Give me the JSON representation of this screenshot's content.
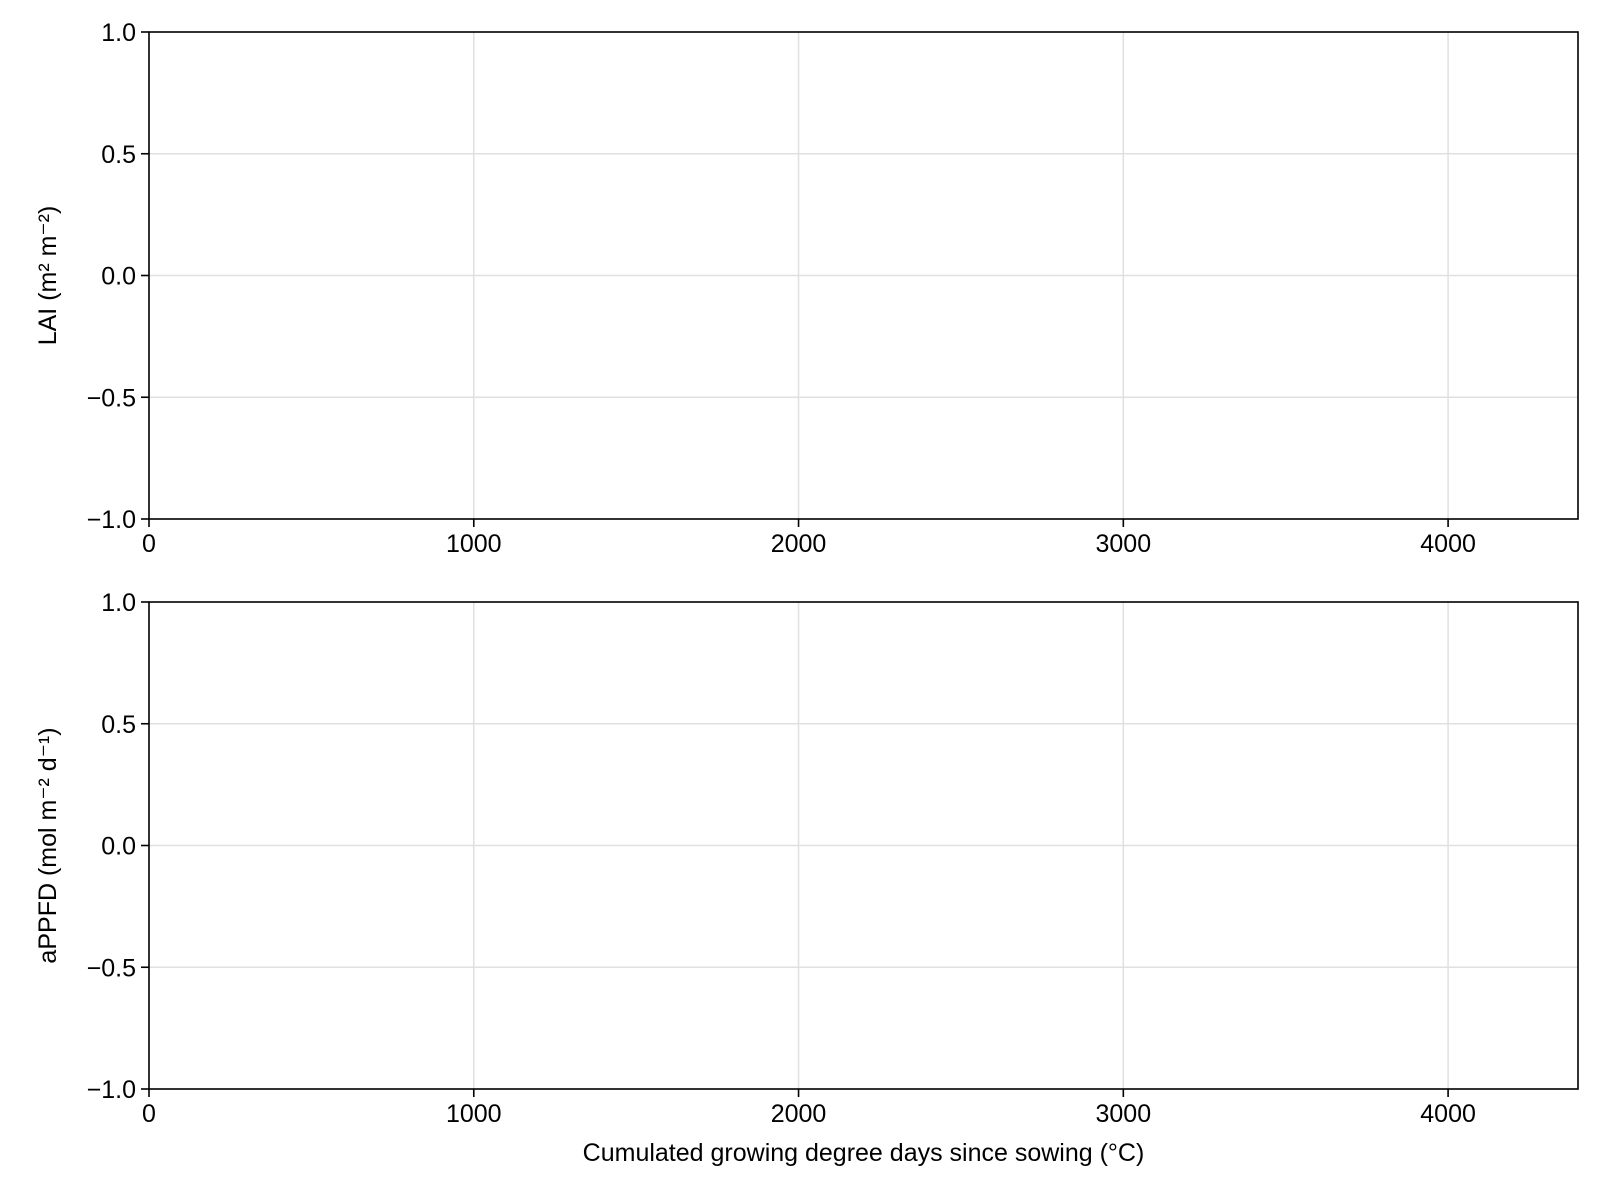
{
  "chart_data": [
    {
      "type": "line",
      "title": "",
      "xlabel": "",
      "ylabel": "LAI (m² m⁻²)",
      "xlim": [
        0,
        4400
      ],
      "ylim": [
        -1.0,
        1.0
      ],
      "x_ticks": [
        0,
        1000,
        2000,
        3000,
        4000
      ],
      "x_tick_labels": [
        "0",
        "1000",
        "2000",
        "3000",
        "4000"
      ],
      "y_ticks": [
        -1.0,
        -0.5,
        0.0,
        0.5,
        1.0
      ],
      "y_tick_labels": [
        "−1.0",
        "−0.5",
        "0.0",
        "0.5",
        "1.0"
      ],
      "grid": true,
      "series": []
    },
    {
      "type": "line",
      "title": "",
      "xlabel": "Cumulated growing degree days since sowing (°C)",
      "ylabel": "aPPFD (mol m⁻² d⁻¹)",
      "xlim": [
        0,
        4400
      ],
      "ylim": [
        -1.0,
        1.0
      ],
      "x_ticks": [
        0,
        1000,
        2000,
        3000,
        4000
      ],
      "x_tick_labels": [
        "0",
        "1000",
        "2000",
        "3000",
        "4000"
      ],
      "y_ticks": [
        -1.0,
        -0.5,
        0.0,
        0.5,
        1.0
      ],
      "y_tick_labels": [
        "−1.0",
        "−0.5",
        "0.0",
        "0.5",
        "1.0"
      ],
      "grid": true,
      "series": []
    }
  ],
  "colors": {
    "grid": "#e0e0e0",
    "axis": "#000000",
    "background": "#ffffff"
  }
}
